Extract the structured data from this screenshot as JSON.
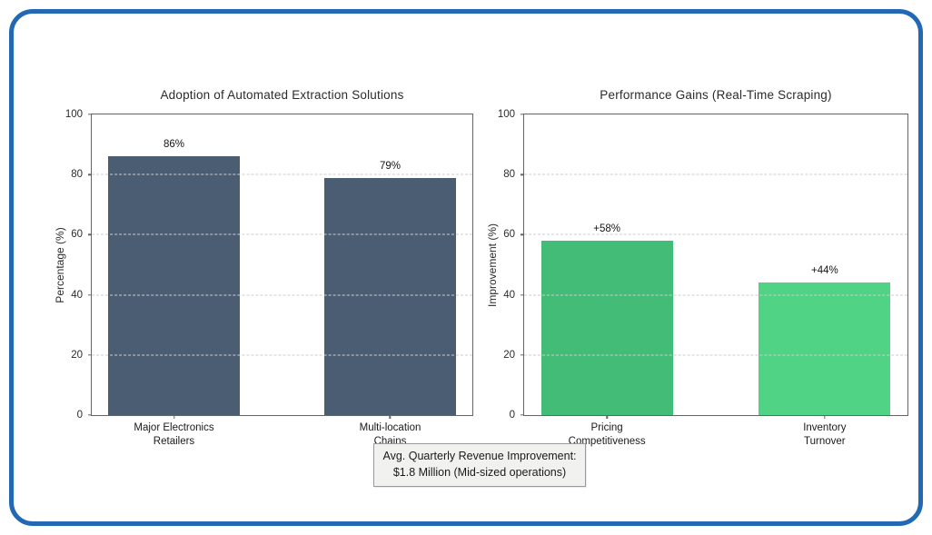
{
  "figure": {
    "background_color": "#ffffff",
    "frame_border_color": "#2268b4"
  },
  "chart_data": [
    {
      "type": "bar",
      "title": "Adoption of Automated Extraction Solutions",
      "xlabel": "",
      "ylabel": "Percentage (%)",
      "ylim": [
        0,
        100
      ],
      "yticks": [
        0,
        20,
        40,
        60,
        80,
        100
      ],
      "grid": "horizontal-dashed",
      "legend": "none",
      "categories": [
        "Major Electronics\nRetailers",
        "Multi-location\nChains"
      ],
      "values": [
        86,
        79
      ],
      "value_labels": [
        "86%",
        "79%"
      ],
      "bar_colors": [
        "#4a5d73",
        "#4a5d73"
      ]
    },
    {
      "type": "bar",
      "title": "Performance Gains (Real-Time Scraping)",
      "xlabel": "",
      "ylabel": "Improvement (%)",
      "ylim": [
        0,
        100
      ],
      "yticks": [
        0,
        20,
        40,
        60,
        80,
        100
      ],
      "grid": "horizontal-dashed",
      "legend": "none",
      "categories": [
        "Pricing\nCompetitiveness",
        "Inventory\nTurnover"
      ],
      "values": [
        58,
        44
      ],
      "value_labels": [
        "+58%",
        "+44%"
      ],
      "bar_colors": [
        "#42bc77",
        "#50d385"
      ]
    }
  ],
  "annotation": {
    "text": "Avg. Quarterly Revenue Improvement:\n$1.8 Million (Mid-sized operations)"
  }
}
